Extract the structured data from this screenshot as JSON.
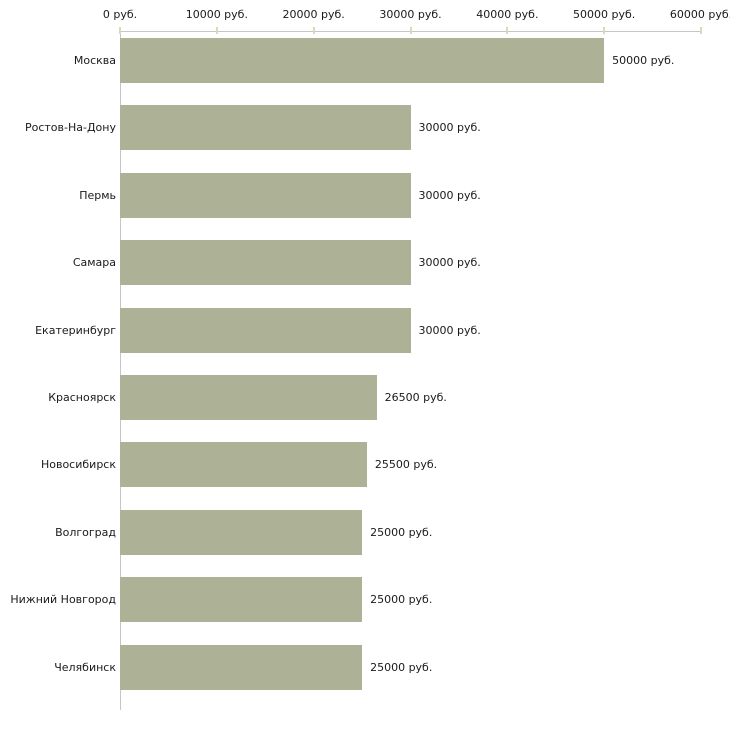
{
  "chart_data": {
    "type": "bar",
    "orientation": "horizontal",
    "categories": [
      "Москва",
      "Ростов-На-Дону",
      "Пермь",
      "Самара",
      "Екатеринбург",
      "Красноярск",
      "Новосибирск",
      "Волгоград",
      "Нижний Новгород",
      "Челябинск"
    ],
    "values": [
      50000,
      30000,
      30000,
      30000,
      30000,
      26500,
      25500,
      25000,
      25000,
      25000
    ],
    "value_labels": [
      "50000 руб.",
      "30000 руб.",
      "30000 руб.",
      "30000 руб.",
      "30000 руб.",
      "26500 руб.",
      "25500 руб.",
      "25000 руб.",
      "25000 руб.",
      "25000 руб."
    ],
    "x_axis": {
      "min": 0,
      "max": 60000,
      "position": "top",
      "tick_values": [
        0,
        10000,
        20000,
        30000,
        40000,
        50000,
        60000
      ],
      "tick_labels": [
        "0 руб.",
        "10000 руб.",
        "20000 руб.",
        "30000 руб.",
        "40000 руб.",
        "50000 руб.",
        "60000 руб."
      ]
    },
    "grid": false,
    "legend": false,
    "colors": {
      "bar": "#adb296",
      "axis_line": "#c6c6c6",
      "tick_mark": "#d8dbb3",
      "text": "#1a1a1a",
      "background": "#ffffff"
    }
  }
}
